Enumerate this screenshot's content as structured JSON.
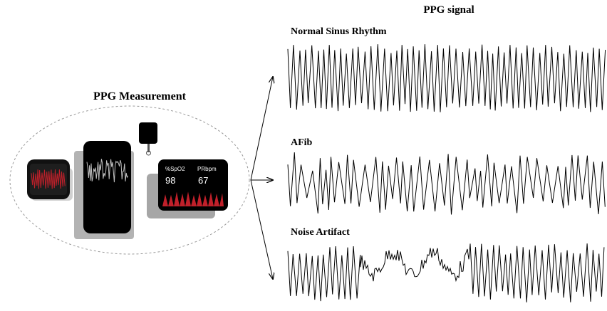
{
  "left_title": "PPG Measurement",
  "right_title": "PPG signal",
  "signals": [
    {
      "label": "Normal Sinus Rhythm"
    },
    {
      "label": "AFib"
    },
    {
      "label": "Noise Artifact"
    }
  ],
  "oximeter": {
    "spo2_label": "%SpO2",
    "spo2_value": "98",
    "pr_label": "PRbpm",
    "pr_value": "67"
  },
  "colors": {
    "waveform": "#000000",
    "device_screen": "#000000",
    "device_shadow": "#a6a6a6",
    "red_wave": "#c0202a",
    "ellipse_border": "#9a9a9a"
  }
}
